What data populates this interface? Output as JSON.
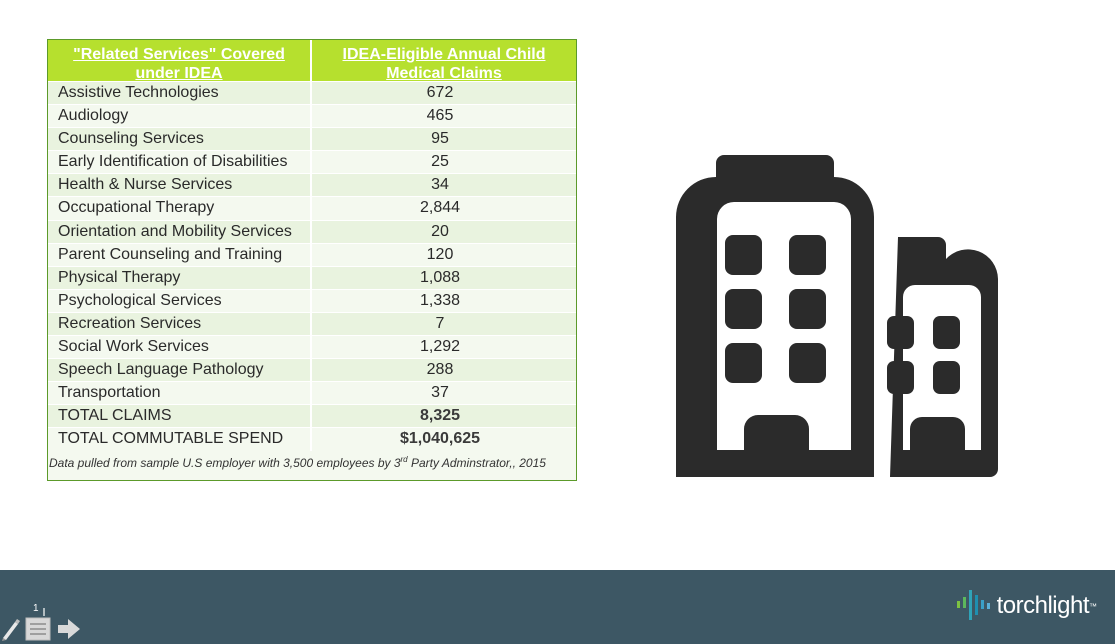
{
  "table": {
    "header": {
      "col1": "\"Related Services\" Covered under IDEA",
      "col2": "IDEA-Eligible Annual Child Medical Claims"
    },
    "rows": [
      {
        "service": "Assistive Technologies",
        "claims": "672"
      },
      {
        "service": "Audiology",
        "claims": "465"
      },
      {
        "service": "Counseling Services",
        "claims": "95"
      },
      {
        "service": "Early Identification of Disabilities",
        "claims": "25"
      },
      {
        "service": "Health & Nurse Services",
        "claims": "34"
      },
      {
        "service": "Occupational Therapy",
        "claims": "2,844"
      },
      {
        "service": "Orientation and Mobility Services",
        "claims": "20"
      },
      {
        "service": "Parent Counseling and Training",
        "claims": "120"
      },
      {
        "service": "Physical Therapy",
        "claims": "1,088"
      },
      {
        "service": "Psychological Services",
        "claims": "1,338"
      },
      {
        "service": "Recreation Services",
        "claims": "7"
      },
      {
        "service": "Social Work Services",
        "claims": "1,292"
      },
      {
        "service": "Speech Language Pathology",
        "claims": "288"
      },
      {
        "service": "Transportation",
        "claims": "37"
      }
    ],
    "totals": [
      {
        "label": "TOTAL CLAIMS",
        "value": "8,325"
      },
      {
        "label": "TOTAL COMMUTABLE SPEND",
        "value": "$1,040,625"
      }
    ],
    "footnote_pre": "Data pulled from sample U.S employer with 3,500 employees by 3",
    "footnote_sup": "rd",
    "footnote_post": " Party Adminstrator,, 2015"
  },
  "icons": {
    "main": "office-building-icon",
    "brand": "torchlight-waveform-icon",
    "pen": "pen-icon",
    "notes": "notes-icon",
    "next": "arrow-right-icon"
  },
  "footer": {
    "brand_name": "torchlight",
    "brand_mark": "™",
    "slide_number": "1"
  },
  "colors": {
    "header_green": "#b6e02e",
    "row_green": "#e9f3df",
    "footer_bg": "#3d5764",
    "icon_dark": "#2b2b2b"
  }
}
